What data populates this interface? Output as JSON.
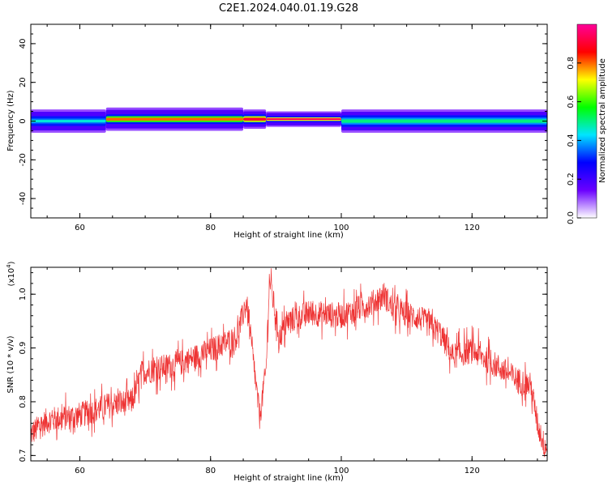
{
  "title": "C2E1.2024.040.01.19.G28",
  "chart_data": [
    {
      "type": "heatmap",
      "xlabel": "Height of straight line (km)",
      "ylabel": "Frequency (Hz)",
      "xlim": [
        52.5,
        131.5
      ],
      "ylim": [
        -50,
        50
      ],
      "xticks": [
        60,
        80,
        100,
        120
      ],
      "yticks": [
        -40,
        -20,
        0,
        20,
        40
      ],
      "colorbar": {
        "label": "Normalized spectral amplitude",
        "range": [
          0,
          1
        ],
        "ticks": [
          0.0,
          0.2,
          0.4,
          0.6,
          0.8
        ],
        "colors": [
          "#ffffff",
          "#6a00ff",
          "#0000ff",
          "#00e5ff",
          "#00ff00",
          "#ffff00",
          "#ff0000",
          "#ff0099"
        ]
      },
      "bands": [
        {
          "x": [
            52.5,
            64
          ],
          "freq": 0,
          "halfwidth": [
            2.5,
            6
          ],
          "peak": 0.45
        },
        {
          "x": [
            64,
            85
          ],
          "freq": 1,
          "halfwidth": [
            2.5,
            6
          ],
          "peak": 0.8
        },
        {
          "x": [
            85,
            88.5
          ],
          "freq": 1,
          "halfwidth": [
            2.5,
            5
          ],
          "peak": 0.9
        },
        {
          "x": [
            88.5,
            100
          ],
          "freq": 1,
          "halfwidth": [
            1.5,
            4
          ],
          "peak": 0.95
        },
        {
          "x": [
            100,
            131.5
          ],
          "freq": 0,
          "halfwidth": [
            3,
            6
          ],
          "peak": 0.5
        }
      ]
    },
    {
      "type": "line",
      "xlabel": "Height of straight line (km)",
      "ylabel": "SNR (10 * v/v)",
      "yscale_label": "(x10",
      "yscale_exponent": "4",
      "yscale_close": ")",
      "xlim": [
        52.5,
        131.5
      ],
      "ylim": [
        0.69,
        1.05
      ],
      "xticks": [
        60,
        80,
        100,
        120
      ],
      "yticks": [
        0.7,
        0.8,
        0.9,
        1.0
      ],
      "line_color": "#ee3333",
      "x": [
        52.5,
        55,
        60,
        65,
        68,
        69.5,
        75,
        80,
        84,
        85.5,
        86.5,
        87.5,
        88.5,
        89,
        90.5,
        92,
        95,
        100,
        105,
        106.5,
        108,
        112,
        115,
        117,
        120,
        124,
        127,
        129,
        130,
        131,
        131.5
      ],
      "values": [
        0.74,
        0.765,
        0.775,
        0.795,
        0.8,
        0.855,
        0.87,
        0.895,
        0.92,
        0.985,
        0.88,
        0.77,
        0.86,
        1.03,
        0.92,
        0.95,
        0.965,
        0.96,
        0.985,
        1.0,
        0.97,
        0.955,
        0.93,
        0.885,
        0.895,
        0.865,
        0.84,
        0.83,
        0.76,
        0.72,
        0.715
      ],
      "noise_amplitude": 0.035
    }
  ]
}
